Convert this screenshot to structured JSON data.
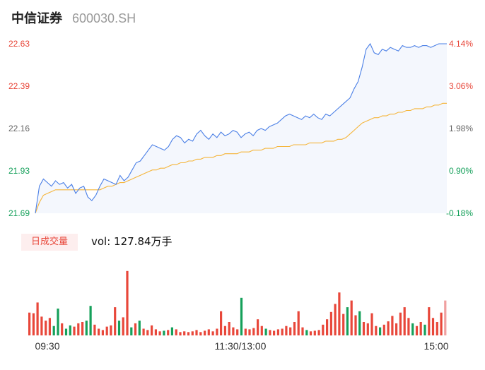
{
  "header": {
    "name": "中信证券",
    "code": "600030.SH"
  },
  "volume_panel": {
    "badge": "日成交量",
    "vol_label": "vol: 127.84万手"
  },
  "colors": {
    "up": "#e8473a",
    "down": "#15a05a",
    "price_line": "#4a7fe6",
    "avg_line": "#f5b53a",
    "area_fill": "#f4f7fd",
    "neutral": "#666666"
  },
  "chart_data": {
    "type": "line",
    "title": "",
    "xlabel": "",
    "ylabel": "",
    "x_ticks": [
      "09:30",
      "11:30/13:00",
      "15:00"
    ],
    "y_ticks_left": [
      "22.63",
      "22.39",
      "22.16",
      "21.93",
      "21.69"
    ],
    "y_ticks_right": [
      "4.14%",
      "3.06%",
      "1.98%",
      "0.90%",
      "-0.18%"
    ],
    "ylim": [
      21.69,
      22.63
    ],
    "volume_unit": "万手",
    "series": [],
    "price": [
      21.69,
      21.84,
      21.88,
      21.86,
      21.84,
      21.87,
      21.85,
      21.86,
      21.83,
      21.85,
      21.8,
      21.83,
      21.84,
      21.78,
      21.76,
      21.79,
      21.84,
      21.88,
      21.87,
      21.86,
      21.85,
      21.9,
      21.87,
      21.89,
      21.93,
      21.97,
      21.98,
      22.01,
      22.04,
      22.07,
      22.06,
      22.05,
      22.04,
      22.06,
      22.1,
      22.12,
      22.11,
      22.08,
      22.1,
      22.09,
      22.13,
      22.15,
      22.12,
      22.1,
      22.13,
      22.11,
      22.14,
      22.12,
      22.13,
      22.15,
      22.14,
      22.11,
      22.13,
      22.14,
      22.12,
      22.15,
      22.16,
      22.15,
      22.17,
      22.18,
      22.19,
      22.21,
      22.23,
      22.24,
      22.23,
      22.22,
      22.21,
      22.23,
      22.22,
      22.24,
      22.22,
      22.21,
      22.24,
      22.23,
      22.25,
      22.27,
      22.29,
      22.31,
      22.33,
      22.38,
      22.42,
      22.5,
      22.6,
      22.63,
      22.58,
      22.57,
      22.6,
      22.59,
      22.61,
      22.6,
      22.59,
      22.62,
      22.61,
      22.61,
      22.62,
      22.61,
      22.62,
      22.62,
      22.61,
      22.62,
      22.63,
      22.63,
      22.63
    ],
    "avg_price": [
      21.69,
      21.75,
      21.79,
      21.8,
      21.81,
      21.82,
      21.82,
      21.82,
      21.82,
      21.82,
      21.82,
      21.82,
      21.82,
      21.82,
      21.82,
      21.82,
      21.82,
      21.83,
      21.84,
      21.84,
      21.85,
      21.86,
      21.86,
      21.87,
      21.88,
      21.89,
      21.9,
      21.91,
      21.92,
      21.93,
      21.93,
      21.94,
      21.94,
      21.95,
      21.96,
      21.96,
      21.97,
      21.97,
      21.98,
      21.98,
      21.99,
      21.99,
      22.0,
      22.0,
      22.0,
      22.01,
      22.01,
      22.02,
      22.02,
      22.02,
      22.02,
      22.03,
      22.03,
      22.03,
      22.04,
      22.04,
      22.04,
      22.05,
      22.05,
      22.05,
      22.06,
      22.06,
      22.06,
      22.06,
      22.07,
      22.07,
      22.07,
      22.07,
      22.08,
      22.08,
      22.08,
      22.08,
      22.09,
      22.09,
      22.09,
      22.1,
      22.1,
      22.11,
      22.13,
      22.15,
      22.17,
      22.19,
      22.2,
      22.21,
      22.22,
      22.22,
      22.23,
      22.23,
      22.24,
      22.24,
      22.25,
      22.25,
      22.26,
      22.26,
      22.27,
      22.27,
      22.27,
      22.28,
      22.28,
      22.29,
      22.29,
      22.3,
      22.3
    ],
    "volume": [
      {
        "v": 0.34,
        "d": "up"
      },
      {
        "v": 0.33,
        "d": "up"
      },
      {
        "v": 0.49,
        "d": "up"
      },
      {
        "v": 0.28,
        "d": "up"
      },
      {
        "v": 0.22,
        "d": "up"
      },
      {
        "v": 0.26,
        "d": "up"
      },
      {
        "v": 0.14,
        "d": "down"
      },
      {
        "v": 0.4,
        "d": "down"
      },
      {
        "v": 0.18,
        "d": "up"
      },
      {
        "v": 0.1,
        "d": "down"
      },
      {
        "v": 0.15,
        "d": "down"
      },
      {
        "v": 0.13,
        "d": "up"
      },
      {
        "v": 0.18,
        "d": "up"
      },
      {
        "v": 0.2,
        "d": "up"
      },
      {
        "v": 0.22,
        "d": "down"
      },
      {
        "v": 0.44,
        "d": "down"
      },
      {
        "v": 0.16,
        "d": "up"
      },
      {
        "v": 0.1,
        "d": "up"
      },
      {
        "v": 0.08,
        "d": "up"
      },
      {
        "v": 0.13,
        "d": "up"
      },
      {
        "v": 0.15,
        "d": "up"
      },
      {
        "v": 0.42,
        "d": "up"
      },
      {
        "v": 0.22,
        "d": "down"
      },
      {
        "v": 0.27,
        "d": "up"
      },
      {
        "v": 0.96,
        "d": "up"
      },
      {
        "v": 0.12,
        "d": "down"
      },
      {
        "v": 0.18,
        "d": "up"
      },
      {
        "v": 0.22,
        "d": "down"
      },
      {
        "v": 0.1,
        "d": "up"
      },
      {
        "v": 0.08,
        "d": "up"
      },
      {
        "v": 0.15,
        "d": "up"
      },
      {
        "v": 0.09,
        "d": "up"
      },
      {
        "v": 0.06,
        "d": "up"
      },
      {
        "v": 0.07,
        "d": "down"
      },
      {
        "v": 0.08,
        "d": "up"
      },
      {
        "v": 0.12,
        "d": "down"
      },
      {
        "v": 0.09,
        "d": "up"
      },
      {
        "v": 0.05,
        "d": "up"
      },
      {
        "v": 0.06,
        "d": "up"
      },
      {
        "v": 0.05,
        "d": "up"
      },
      {
        "v": 0.06,
        "d": "up"
      },
      {
        "v": 0.08,
        "d": "up"
      },
      {
        "v": 0.05,
        "d": "up"
      },
      {
        "v": 0.07,
        "d": "up"
      },
      {
        "v": 0.09,
        "d": "up"
      },
      {
        "v": 0.06,
        "d": "up"
      },
      {
        "v": 0.1,
        "d": "up"
      },
      {
        "v": 0.36,
        "d": "up"
      },
      {
        "v": 0.14,
        "d": "up"
      },
      {
        "v": 0.2,
        "d": "up"
      },
      {
        "v": 0.12,
        "d": "up"
      },
      {
        "v": 0.09,
        "d": "up"
      },
      {
        "v": 0.56,
        "d": "down"
      },
      {
        "v": 0.1,
        "d": "up"
      },
      {
        "v": 0.09,
        "d": "up"
      },
      {
        "v": 0.11,
        "d": "up"
      },
      {
        "v": 0.24,
        "d": "up"
      },
      {
        "v": 0.14,
        "d": "up"
      },
      {
        "v": 0.1,
        "d": "down"
      },
      {
        "v": 0.08,
        "d": "up"
      },
      {
        "v": 0.07,
        "d": "up"
      },
      {
        "v": 0.09,
        "d": "up"
      },
      {
        "v": 0.1,
        "d": "up"
      },
      {
        "v": 0.14,
        "d": "up"
      },
      {
        "v": 0.12,
        "d": "up"
      },
      {
        "v": 0.2,
        "d": "up"
      },
      {
        "v": 0.36,
        "d": "up"
      },
      {
        "v": 0.12,
        "d": "up"
      },
      {
        "v": 0.08,
        "d": "down"
      },
      {
        "v": 0.06,
        "d": "up"
      },
      {
        "v": 0.07,
        "d": "up"
      },
      {
        "v": 0.08,
        "d": "up"
      },
      {
        "v": 0.16,
        "d": "up"
      },
      {
        "v": 0.24,
        "d": "up"
      },
      {
        "v": 0.35,
        "d": "up"
      },
      {
        "v": 0.47,
        "d": "up"
      },
      {
        "v": 0.64,
        "d": "up"
      },
      {
        "v": 0.32,
        "d": "up"
      },
      {
        "v": 0.42,
        "d": "down"
      },
      {
        "v": 0.52,
        "d": "up"
      },
      {
        "v": 0.3,
        "d": "up"
      },
      {
        "v": 0.36,
        "d": "down"
      },
      {
        "v": 0.2,
        "d": "up"
      },
      {
        "v": 0.18,
        "d": "up"
      },
      {
        "v": 0.33,
        "d": "up"
      },
      {
        "v": 0.14,
        "d": "up"
      },
      {
        "v": 0.12,
        "d": "down"
      },
      {
        "v": 0.16,
        "d": "up"
      },
      {
        "v": 0.21,
        "d": "up"
      },
      {
        "v": 0.29,
        "d": "up"
      },
      {
        "v": 0.18,
        "d": "up"
      },
      {
        "v": 0.34,
        "d": "up"
      },
      {
        "v": 0.42,
        "d": "up"
      },
      {
        "v": 0.26,
        "d": "up"
      },
      {
        "v": 0.18,
        "d": "down"
      },
      {
        "v": 0.14,
        "d": "up"
      },
      {
        "v": 0.2,
        "d": "up"
      },
      {
        "v": 0.16,
        "d": "down"
      },
      {
        "v": 0.42,
        "d": "up"
      },
      {
        "v": 0.26,
        "d": "up"
      },
      {
        "v": 0.2,
        "d": "up"
      },
      {
        "v": 0.34,
        "d": "up"
      },
      {
        "v": 0.52,
        "d": "neutral"
      }
    ]
  }
}
